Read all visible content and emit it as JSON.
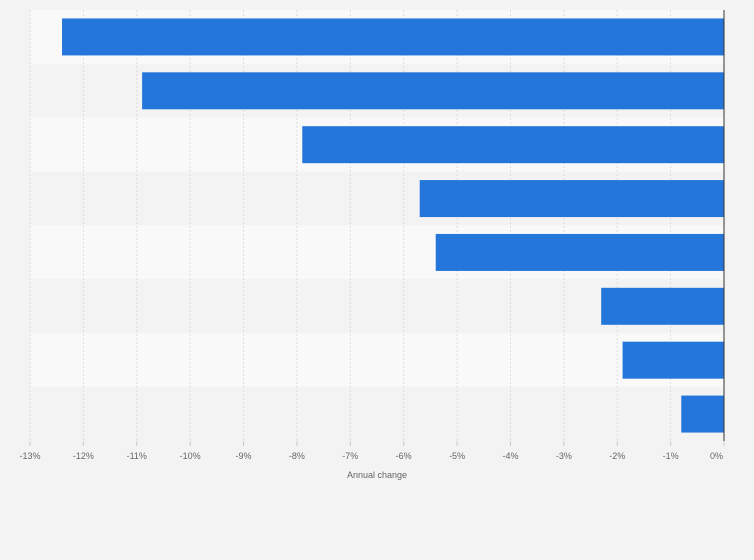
{
  "chart_data": {
    "type": "bar",
    "orientation": "horizontal",
    "categories": [
      "",
      "",
      "",
      "",
      "",
      "",
      "",
      ""
    ],
    "values": [
      -12.4,
      -10.9,
      -7.9,
      -5.7,
      -5.4,
      -2.3,
      -1.9,
      -0.8
    ],
    "title": "",
    "xlabel": "Annual change",
    "ylabel": "",
    "xlim": [
      -13,
      0
    ],
    "xticks": [
      -13,
      -12,
      -11,
      -10,
      -9,
      -8,
      -7,
      -6,
      -5,
      -4,
      -3,
      -2,
      -1,
      0
    ],
    "xtick_labels": [
      "-13%",
      "-12%",
      "-11%",
      "-10%",
      "-9%",
      "-8%",
      "-7%",
      "-6%",
      "-5%",
      "-4%",
      "-3%",
      "-2%",
      "-1%",
      "0%"
    ],
    "grid": true,
    "legend": "none",
    "colors": {
      "bar": "#2576db",
      "row_even": "#f9f9f9",
      "row_odd": "#f3f3f3",
      "grid": "#dcdcdc",
      "axis": "#333333",
      "text": "#666666",
      "background": "#f3f3f3"
    }
  }
}
